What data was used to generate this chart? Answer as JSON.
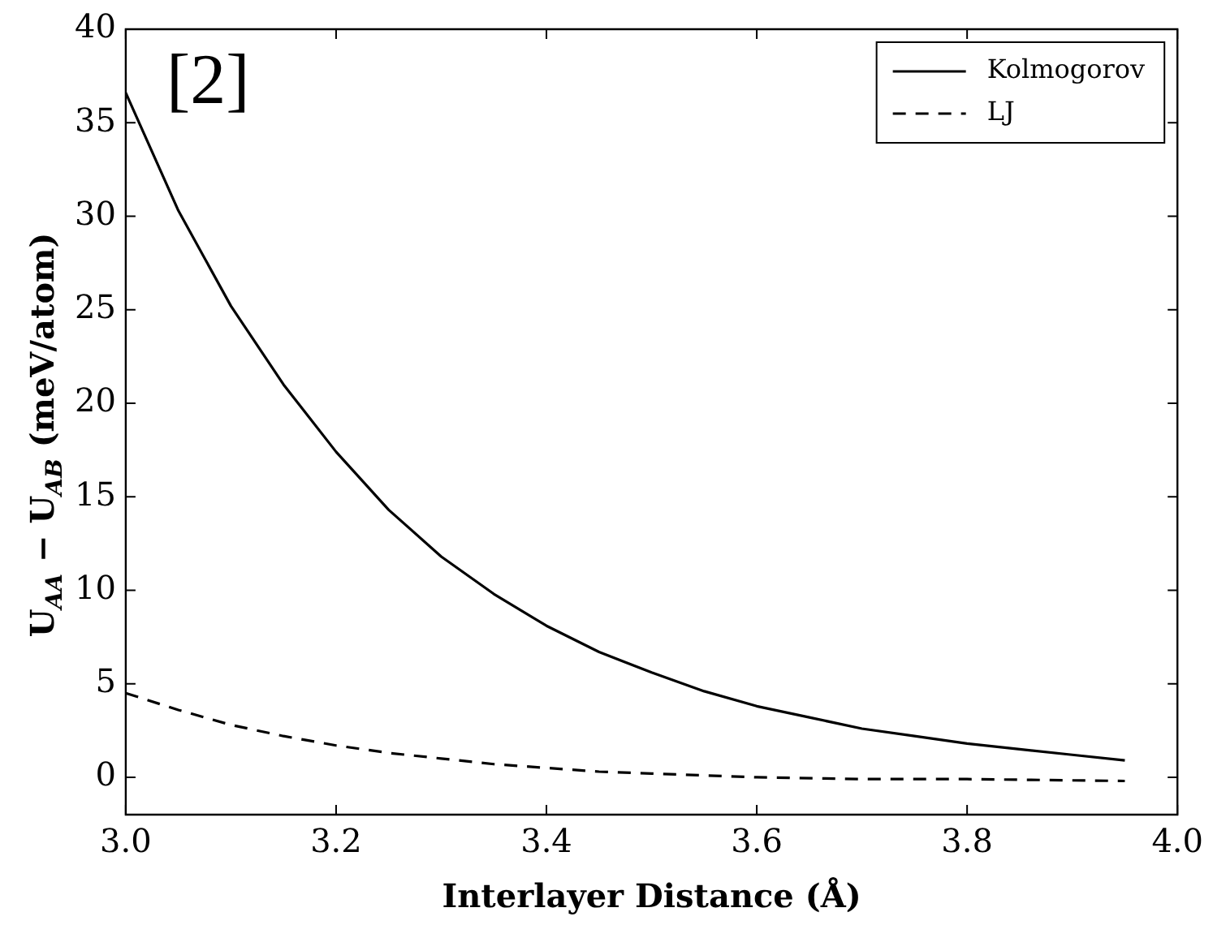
{
  "chart_data": {
    "type": "line",
    "xlabel": "Interlayer Distance (Å)",
    "ylabel": "U$_{AA}$ − U$_{AB}$ (meV/atom)",
    "annotations": [
      "[2]"
    ],
    "xlim": [
      3.0,
      4.0
    ],
    "xticks": [
      {
        "value": 3.0,
        "label": "3.0"
      },
      {
        "value": 3.2,
        "label": "3.2"
      },
      {
        "value": 3.4,
        "label": "3.4"
      },
      {
        "value": 3.6,
        "label": "3.6"
      },
      {
        "value": 3.8,
        "label": "3.8"
      },
      {
        "value": 4.0,
        "label": "4.0"
      }
    ],
    "ylim": [
      -2,
      40
    ],
    "yticks": [
      0,
      5,
      10,
      15,
      20,
      25,
      30,
      35,
      40
    ],
    "grid": false,
    "legend": "top right",
    "marker": "none",
    "series": [
      {
        "name": "Kolmogorov",
        "color": "#000000",
        "line_style": "solid",
        "x": [
          3.0,
          3.05,
          3.1,
          3.15,
          3.2,
          3.25,
          3.3,
          3.35,
          3.4,
          3.45,
          3.5,
          3.55,
          3.6,
          3.65,
          3.7,
          3.75,
          3.8,
          3.85,
          3.9,
          3.95
        ],
        "values": [
          36.6,
          30.3,
          25.2,
          21.0,
          17.4,
          14.3,
          11.8,
          9.8,
          8.1,
          6.7,
          5.6,
          4.6,
          3.8,
          3.2,
          2.6,
          2.2,
          1.8,
          1.5,
          1.2,
          0.9
        ]
      },
      {
        "name": "LJ",
        "color": "#000000",
        "line_style": "dashed",
        "x": [
          3.0,
          3.05,
          3.1,
          3.15,
          3.2,
          3.25,
          3.3,
          3.35,
          3.4,
          3.45,
          3.5,
          3.55,
          3.6,
          3.7,
          3.8,
          3.95
        ],
        "values": [
          4.5,
          3.6,
          2.8,
          2.2,
          1.7,
          1.3,
          1.0,
          0.7,
          0.5,
          0.3,
          0.2,
          0.1,
          0.0,
          -0.1,
          -0.1,
          -0.2
        ]
      }
    ]
  }
}
